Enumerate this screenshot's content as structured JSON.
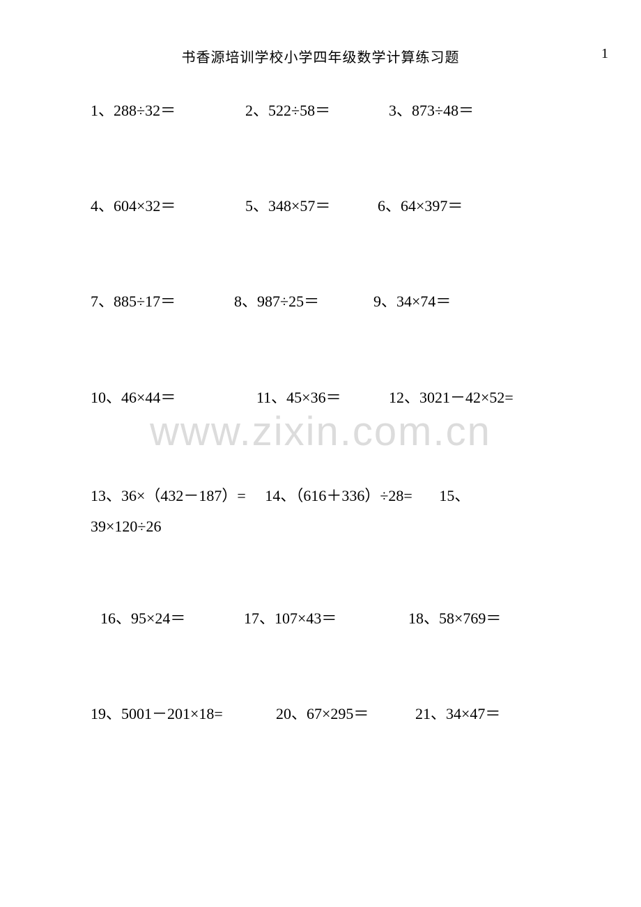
{
  "header": {
    "title": "书香源培训学校小学四年级数学计算练习题",
    "page_number": "1"
  },
  "watermark": "www.zixin.com.cn",
  "problems": {
    "p1": "1、288÷32＝",
    "p2": "2、522÷58＝",
    "p3": "3、873÷48＝",
    "p4": "4、604×32＝",
    "p5": "5、348×57＝",
    "p6": "6、64×397＝",
    "p7": "7、885÷17＝",
    "p8": "8、987÷25＝",
    "p9": "9、34×74＝",
    "p10": "10、46×44＝",
    "p11": "11、45×36＝",
    "p12": "12、3021－42×52=",
    "p13": "13、36×（432－187）=",
    "p14": "14、（616＋336）÷28=",
    "p15a": "15、",
    "p15b": "39×120÷26",
    "p16": "16、95×24＝",
    "p17": "17、107×43＝",
    "p18": "18、58×769＝",
    "p19": "19、5001－201×18=",
    "p20": "20、67×295＝",
    "p21": "21、34×47＝"
  },
  "colors": {
    "text": "#000000",
    "background": "#ffffff",
    "watermark": "#dcdcdc"
  },
  "fontsizes": {
    "header": 20,
    "body": 22,
    "watermark": 58
  }
}
